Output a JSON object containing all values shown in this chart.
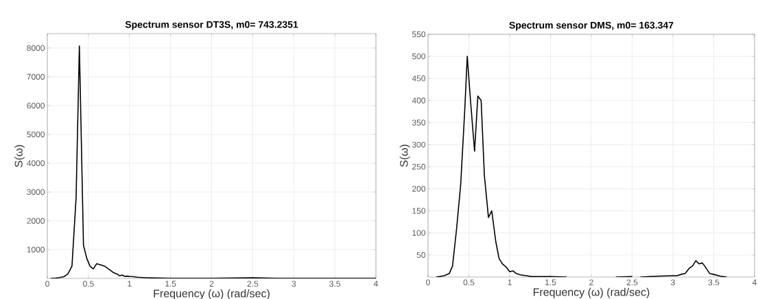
{
  "chart_data": [
    {
      "type": "line",
      "title": "Spectrum sensor DT3S, m0= 743.2351",
      "xlabel": "Frequency (ω) (rad/sec)",
      "ylabel": "S(ω)",
      "series": [
        {
          "color": "#000000",
          "x": [
            0.04,
            0.1,
            0.15,
            0.2,
            0.25,
            0.3,
            0.35,
            0.39,
            0.44,
            0.48,
            0.52,
            0.56,
            0.6,
            0.65,
            0.7,
            0.75,
            0.8,
            0.85,
            0.88,
            0.91,
            0.94,
            0.97,
            1.0,
            1.05,
            1.1,
            1.2,
            1.3,
            1.5,
            2.0,
            2.5,
            2.8,
            3.0,
            4.0
          ],
          "values": [
            0,
            10,
            30,
            60,
            150,
            430,
            2800,
            8070,
            1150,
            700,
            420,
            330,
            510,
            470,
            420,
            320,
            210,
            150,
            90,
            120,
            70,
            80,
            70,
            60,
            40,
            25,
            15,
            5,
            5,
            20,
            5,
            3,
            2
          ]
        }
      ],
      "xlim": [
        0,
        4
      ],
      "ylim": [
        0,
        8500
      ],
      "xticks": [
        0,
        0.5,
        1,
        1.5,
        2,
        2.5,
        3,
        3.5,
        4
      ],
      "yticks": [
        1000,
        2000,
        3000,
        4000,
        5000,
        6000,
        7000,
        8000
      ],
      "grid": true,
      "line_style": "solid"
    },
    {
      "type": "line",
      "title": "Spectrum sensor DMS, m0= 163.347",
      "xlabel": "Frequency (ω) (rad/sec)",
      "ylabel": "S(ω)",
      "series": [
        {
          "color": "#000000",
          "x": [
            0.1,
            0.2,
            0.26,
            0.3,
            0.35,
            0.4,
            0.45,
            0.48,
            0.52,
            0.57,
            0.61,
            0.65,
            0.69,
            0.74,
            0.78,
            0.83,
            0.87,
            0.91,
            0.96,
            1.0,
            1.04,
            1.08,
            1.13,
            1.2,
            1.27,
            1.5,
            1.7,
            2.0,
            2.3,
            2.5,
            2.55,
            2.6,
            2.8,
            3.0,
            3.05,
            3.1,
            3.15,
            3.2,
            3.24,
            3.28,
            3.32,
            3.36,
            3.4,
            3.45,
            3.5,
            3.58,
            3.66
          ],
          "values": [
            0,
            3,
            8,
            25,
            110,
            210,
            380,
            500,
            400,
            285,
            410,
            400,
            230,
            135,
            150,
            80,
            42,
            30,
            22,
            12,
            14,
            8,
            5,
            3,
            1,
            1,
            0,
            null,
            0,
            1,
            null,
            0,
            2,
            3,
            3,
            6,
            8,
            20,
            25,
            37,
            30,
            32,
            22,
            8,
            6,
            2,
            0
          ]
        }
      ],
      "xlim": [
        0,
        4
      ],
      "ylim": [
        0,
        550
      ],
      "xticks": [
        0,
        0.5,
        1,
        1.5,
        2,
        2.5,
        3,
        3.5,
        4
      ],
      "yticks": [
        50,
        100,
        150,
        200,
        250,
        300,
        350,
        400,
        450,
        500,
        550
      ],
      "grid": true,
      "line_style": "solid"
    }
  ]
}
